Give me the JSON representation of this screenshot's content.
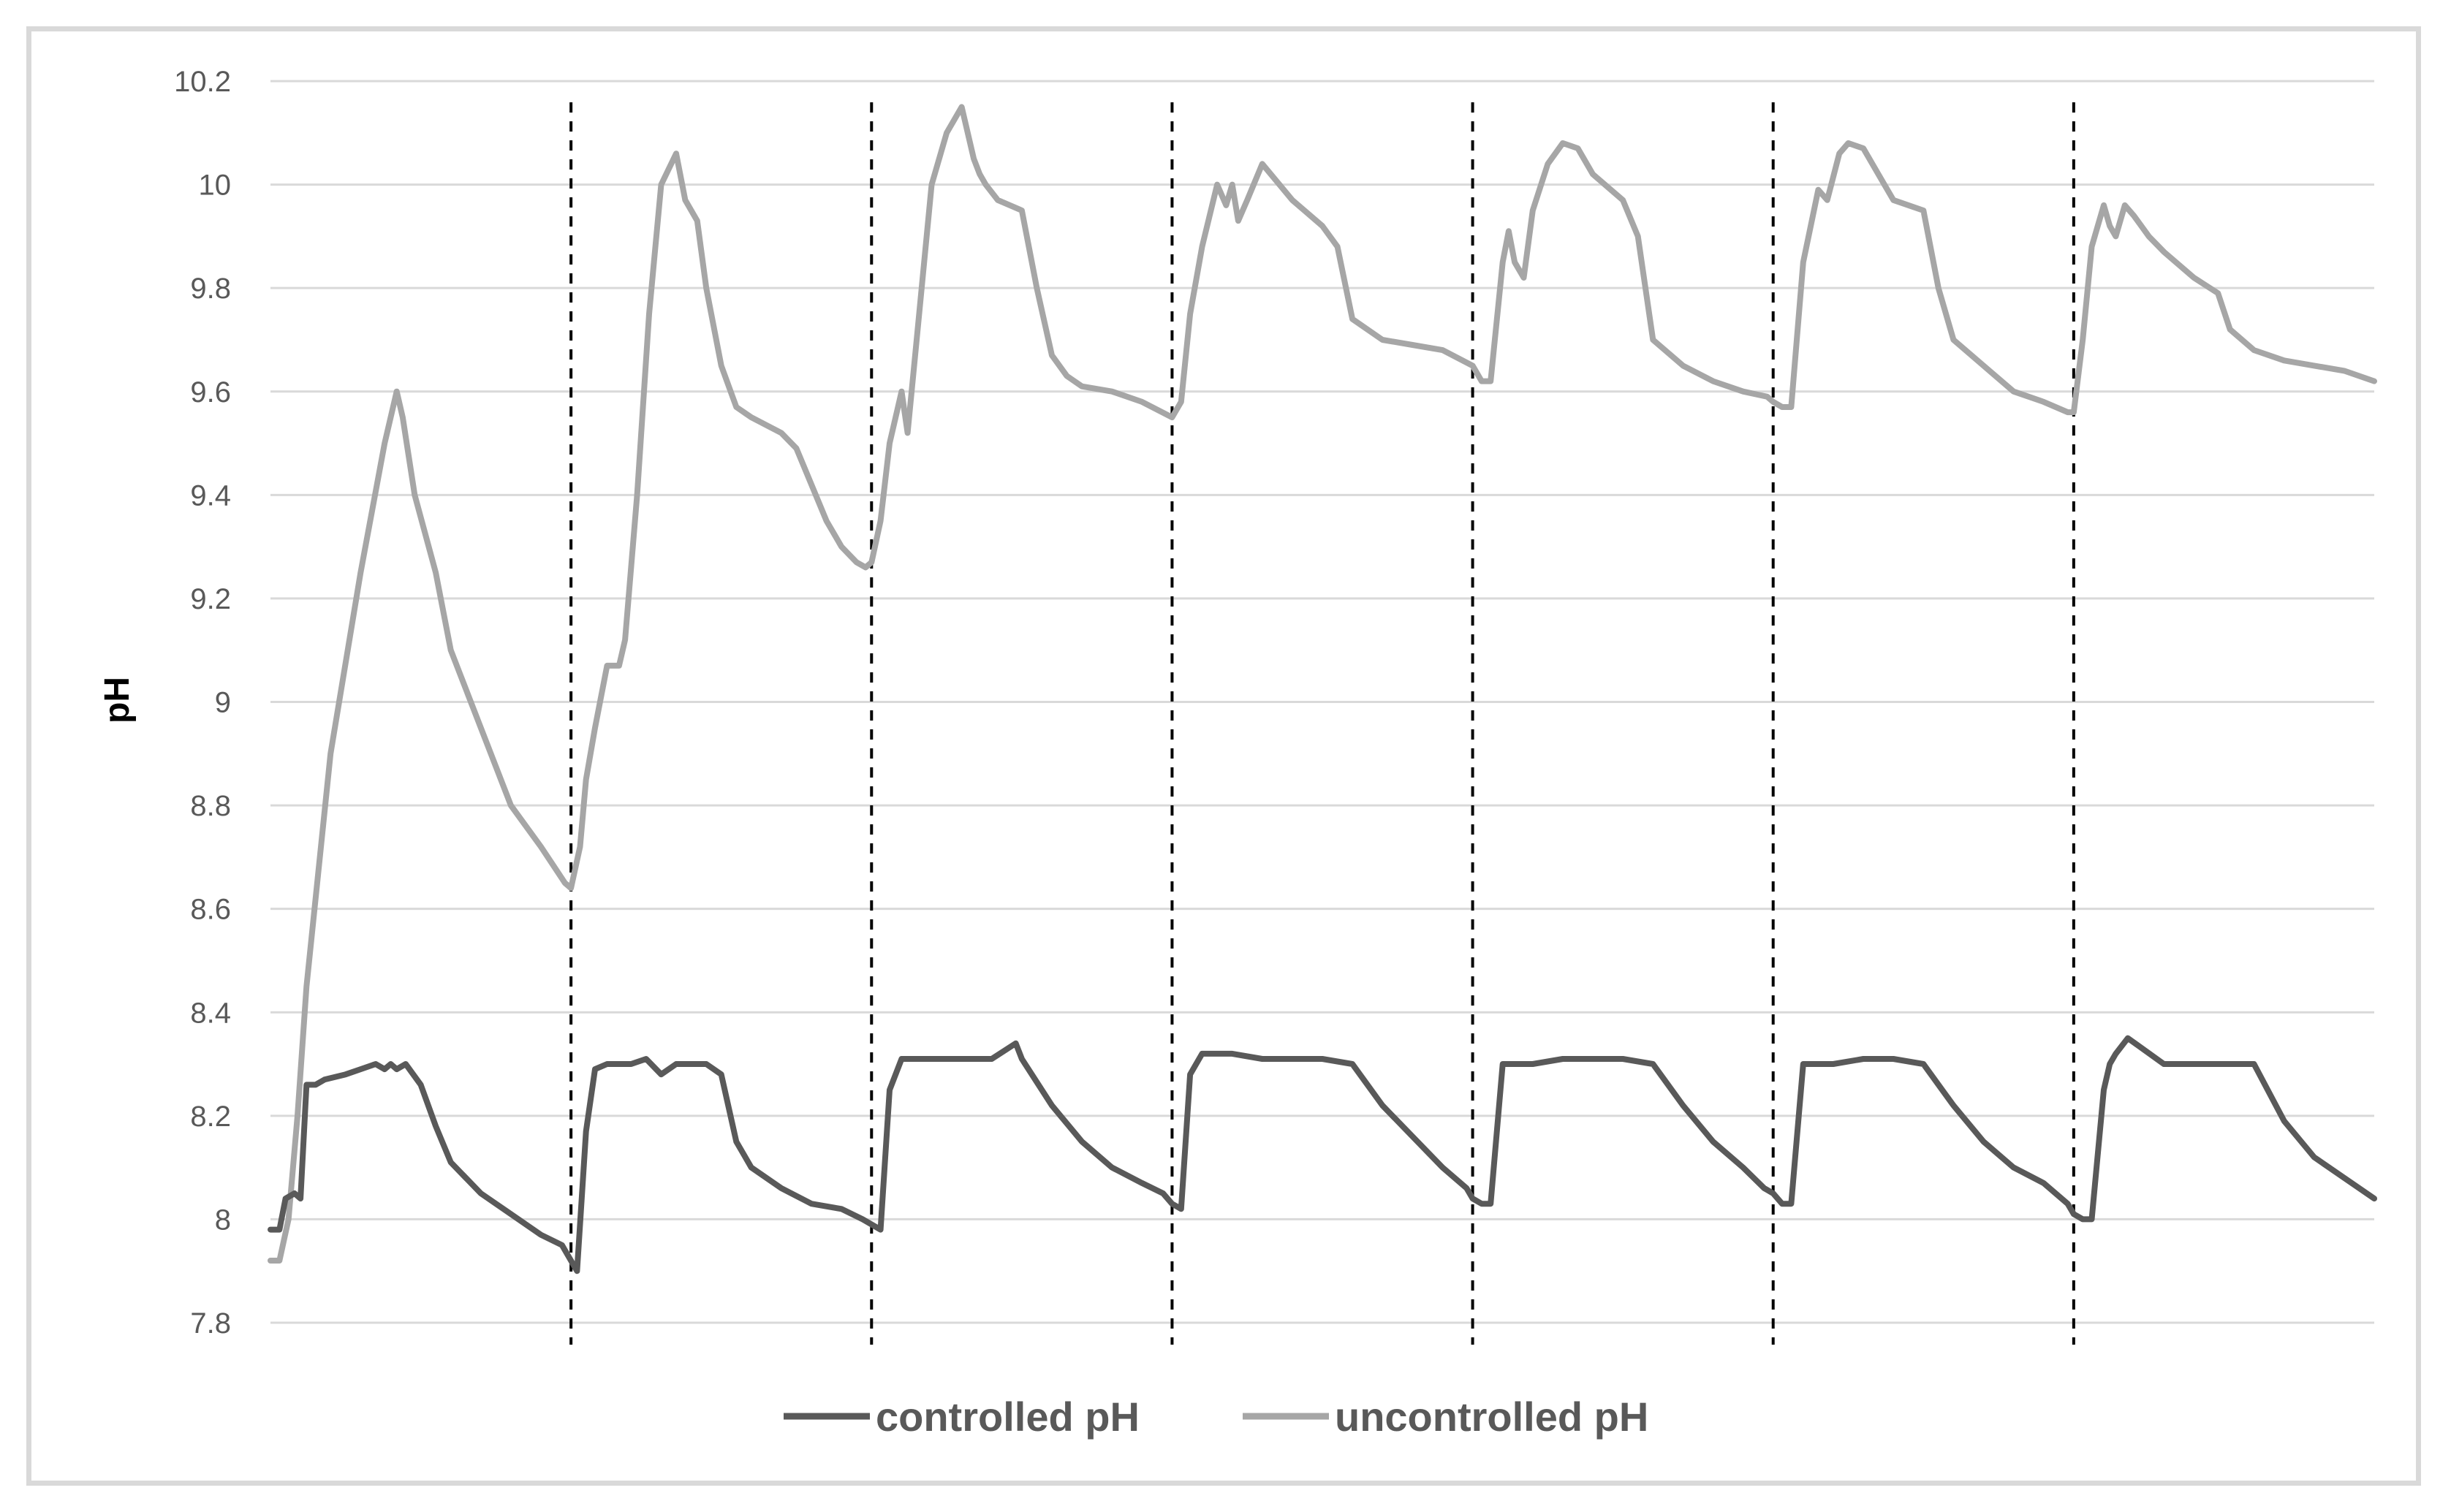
{
  "chart_data": {
    "type": "line",
    "title": "",
    "xlabel": "",
    "ylabel": "pH",
    "ylim": [
      7.8,
      10.2
    ],
    "ytick_labels": [
      "7.8",
      "8",
      "8.2",
      "8.4",
      "8.6",
      "8.8",
      "9",
      "9.2",
      "9.4",
      "9.6",
      "9.8",
      "10",
      "10.2"
    ],
    "xlim": [
      0,
      7
    ],
    "grid": true,
    "legend": "bottom",
    "cycle_boundaries": [
      1.0,
      2.0,
      3.0,
      4.0,
      5.0,
      6.0
    ],
    "series": [
      {
        "name": "controlled pH",
        "color": "#595959",
        "x": [
          0,
          0.03,
          0.05,
          0.08,
          0.1,
          0.12,
          0.13,
          0.15,
          0.18,
          0.25,
          0.3,
          0.35,
          0.38,
          0.4,
          0.42,
          0.45,
          0.5,
          0.55,
          0.6,
          0.7,
          0.8,
          0.9,
          0.97,
          1.0,
          1.02,
          1.05,
          1.08,
          1.12,
          1.2,
          1.25,
          1.3,
          1.35,
          1.4,
          1.45,
          1.5,
          1.55,
          1.6,
          1.7,
          1.8,
          1.9,
          1.97,
          2.0,
          2.03,
          2.06,
          2.1,
          2.2,
          2.3,
          2.4,
          2.48,
          2.5,
          2.6,
          2.7,
          2.8,
          2.9,
          2.97,
          3.0,
          3.03,
          3.06,
          3.1,
          3.2,
          3.3,
          3.4,
          3.5,
          3.6,
          3.7,
          3.8,
          3.9,
          3.98,
          4.0,
          4.03,
          4.06,
          4.1,
          4.2,
          4.3,
          4.4,
          4.5,
          4.6,
          4.7,
          4.8,
          4.9,
          4.97,
          5.0,
          5.03,
          5.06,
          5.1,
          5.2,
          5.3,
          5.4,
          5.5,
          5.6,
          5.7,
          5.8,
          5.9,
          5.98,
          6.0,
          6.03,
          6.06,
          6.1,
          6.12,
          6.14,
          6.18,
          6.3,
          6.5,
          6.6,
          6.7,
          6.8,
          6.9,
          7.0
        ],
        "values": [
          7.98,
          7.98,
          8.04,
          8.05,
          8.04,
          8.26,
          8.26,
          8.26,
          8.27,
          8.28,
          8.29,
          8.3,
          8.29,
          8.3,
          8.29,
          8.3,
          8.26,
          8.18,
          8.11,
          8.05,
          8.01,
          7.97,
          7.95,
          7.92,
          7.9,
          8.17,
          8.29,
          8.3,
          8.3,
          8.31,
          8.28,
          8.3,
          8.3,
          8.3,
          8.28,
          8.15,
          8.1,
          8.06,
          8.03,
          8.02,
          8.0,
          7.99,
          7.98,
          8.25,
          8.31,
          8.31,
          8.31,
          8.31,
          8.34,
          8.31,
          8.22,
          8.15,
          8.1,
          8.07,
          8.05,
          8.03,
          8.02,
          8.28,
          8.32,
          8.32,
          8.31,
          8.31,
          8.31,
          8.3,
          8.22,
          8.16,
          8.1,
          8.06,
          8.04,
          8.03,
          8.03,
          8.3,
          8.3,
          8.31,
          8.31,
          8.31,
          8.3,
          8.22,
          8.15,
          8.1,
          8.06,
          8.05,
          8.03,
          8.03,
          8.3,
          8.3,
          8.31,
          8.31,
          8.3,
          8.22,
          8.15,
          8.1,
          8.07,
          8.03,
          8.01,
          8.0,
          8.0,
          8.25,
          8.3,
          8.32,
          8.35,
          8.3,
          8.3,
          8.3,
          8.19,
          8.12,
          8.08,
          8.04
        ]
      },
      {
        "name": "uncontrolled pH",
        "color": "#a6a6a6",
        "x": [
          0,
          0.03,
          0.06,
          0.09,
          0.12,
          0.2,
          0.3,
          0.38,
          0.42,
          0.44,
          0.48,
          0.55,
          0.6,
          0.7,
          0.8,
          0.9,
          0.98,
          1.0,
          1.03,
          1.05,
          1.08,
          1.12,
          1.16,
          1.18,
          1.22,
          1.26,
          1.3,
          1.35,
          1.38,
          1.42,
          1.45,
          1.5,
          1.55,
          1.6,
          1.7,
          1.75,
          1.8,
          1.85,
          1.9,
          1.95,
          1.98,
          2.0,
          2.03,
          2.06,
          2.1,
          2.12,
          2.15,
          2.2,
          2.25,
          2.3,
          2.34,
          2.36,
          2.38,
          2.42,
          2.5,
          2.55,
          2.6,
          2.65,
          2.7,
          2.8,
          2.9,
          3.0,
          3.03,
          3.06,
          3.1,
          3.15,
          3.18,
          3.2,
          3.22,
          3.25,
          3.3,
          3.4,
          3.5,
          3.55,
          3.6,
          3.7,
          3.8,
          3.9,
          4.0,
          4.03,
          4.06,
          4.1,
          4.12,
          4.14,
          4.17,
          4.2,
          4.25,
          4.3,
          4.35,
          4.4,
          4.5,
          4.55,
          4.6,
          4.7,
          4.8,
          4.9,
          4.98,
          5.0,
          5.03,
          5.06,
          5.1,
          5.15,
          5.18,
          5.22,
          5.25,
          5.3,
          5.35,
          5.4,
          5.5,
          5.55,
          5.6,
          5.7,
          5.8,
          5.9,
          5.98,
          6.0,
          6.03,
          6.06,
          6.1,
          6.12,
          6.14,
          6.17,
          6.2,
          6.25,
          6.3,
          6.4,
          6.48,
          6.52,
          6.6,
          6.7,
          6.8,
          6.9,
          7.0
        ],
        "values": [
          7.92,
          7.92,
          8.0,
          8.2,
          8.45,
          8.9,
          9.25,
          9.5,
          9.6,
          9.55,
          9.4,
          9.25,
          9.1,
          8.95,
          8.8,
          8.72,
          8.65,
          8.64,
          8.72,
          8.85,
          8.95,
          9.07,
          9.07,
          9.12,
          9.4,
          9.75,
          10.0,
          10.06,
          9.97,
          9.93,
          9.8,
          9.65,
          9.57,
          9.55,
          9.52,
          9.49,
          9.42,
          9.35,
          9.3,
          9.27,
          9.26,
          9.27,
          9.35,
          9.5,
          9.6,
          9.52,
          9.7,
          10.0,
          10.1,
          10.15,
          10.05,
          10.02,
          10.0,
          9.97,
          9.95,
          9.8,
          9.67,
          9.63,
          9.61,
          9.6,
          9.58,
          9.55,
          9.58,
          9.75,
          9.88,
          10.0,
          9.96,
          10.0,
          9.93,
          9.97,
          10.04,
          9.97,
          9.92,
          9.88,
          9.74,
          9.7,
          9.69,
          9.68,
          9.65,
          9.62,
          9.62,
          9.85,
          9.91,
          9.85,
          9.82,
          9.95,
          10.04,
          10.08,
          10.07,
          10.02,
          9.97,
          9.9,
          9.7,
          9.65,
          9.62,
          9.6,
          9.59,
          9.58,
          9.57,
          9.57,
          9.85,
          9.99,
          9.97,
          10.06,
          10.08,
          10.07,
          10.02,
          9.97,
          9.95,
          9.8,
          9.7,
          9.65,
          9.6,
          9.58,
          9.56,
          9.56,
          9.7,
          9.88,
          9.96,
          9.92,
          9.9,
          9.96,
          9.94,
          9.9,
          9.87,
          9.82,
          9.79,
          9.72,
          9.68,
          9.66,
          9.65,
          9.64,
          9.62
        ]
      }
    ]
  }
}
